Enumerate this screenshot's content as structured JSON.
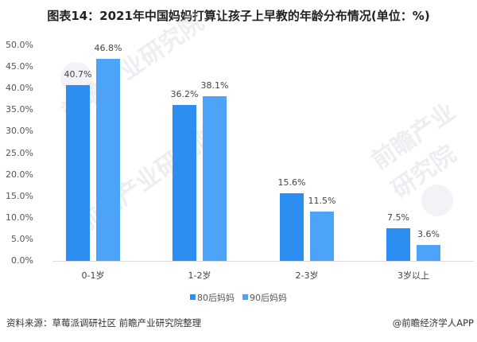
{
  "title": "图表14：2021年中国妈妈打算让孩子上早教的年龄分布情况(单位：%)",
  "chart_data": {
    "type": "bar",
    "title": "图表14：2021年中国妈妈打算让孩子上早教的年龄分布情况(单位：%)",
    "xlabel": "",
    "ylabel": "",
    "ylim": [
      0,
      50
    ],
    "yticks": [
      "0.0%",
      "5.0%",
      "10.0%",
      "15.0%",
      "20.0%",
      "25.0%",
      "30.0%",
      "35.0%",
      "40.0%",
      "45.0%",
      "50.0%"
    ],
    "categories": [
      "0-1岁",
      "1-2岁",
      "2-3岁",
      "3岁以上"
    ],
    "series": [
      {
        "name": "80后妈妈",
        "color": "#2b8ef0",
        "values": [
          40.7,
          36.2,
          15.6,
          7.5
        ],
        "labels": [
          "40.7%",
          "36.2%",
          "15.6%",
          "7.5%"
        ]
      },
      {
        "name": "90后妈妈",
        "color": "#4ca3f7",
        "values": [
          46.8,
          38.1,
          11.5,
          3.6
        ],
        "labels": [
          "46.8%",
          "38.1%",
          "11.5%",
          "3.6%"
        ]
      }
    ],
    "grid": false,
    "legend_position": "bottom"
  },
  "legend": [
    {
      "label": "80后妈妈",
      "color": "#2b8ef0"
    },
    {
      "label": "90后妈妈",
      "color": "#4ca3f7"
    }
  ],
  "footer": {
    "source": "资料来源：草莓派调研社区 前瞻产业研究院整理",
    "credit": "@前瞻经济学人APP"
  },
  "watermark": "前瞻产业研究院"
}
